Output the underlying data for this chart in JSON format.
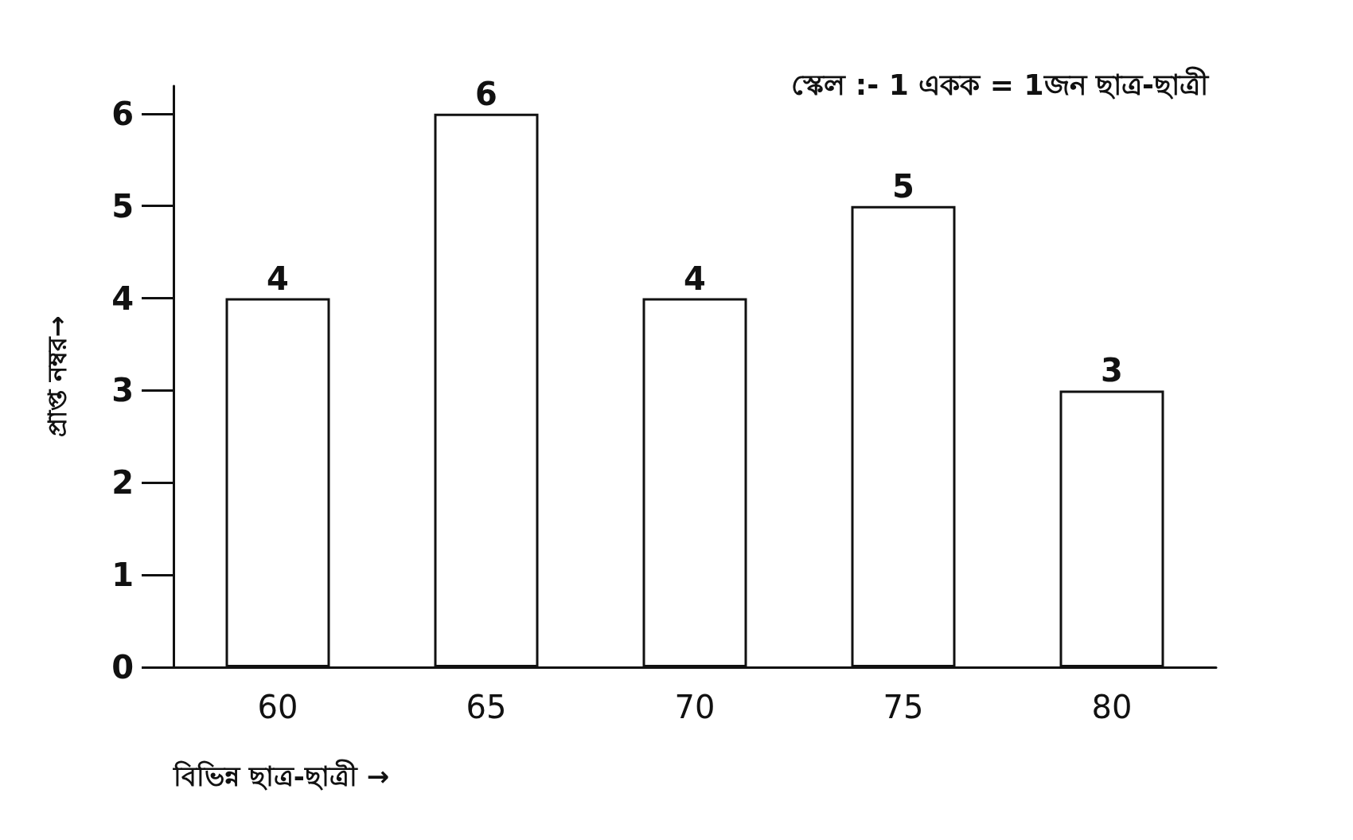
{
  "chart_data": {
    "type": "bar",
    "categories": [
      "60",
      "65",
      "70",
      "75",
      "80"
    ],
    "values": [
      4,
      6,
      4,
      5,
      3
    ],
    "color": "#ffffff",
    "ylim": [
      0,
      6.3
    ],
    "yticks": [
      0,
      1,
      2,
      3,
      4,
      5,
      6
    ],
    "xlabel": "বিভিন্ন ছাত্র-ছাত্রী →",
    "ylabel": "প্রাপ্ত নম্বর→",
    "annotations": [
      "স্কেল :- 1 একক = 1জন ছাত্র-ছাত্রী"
    ],
    "data_labels": true,
    "grid": false
  }
}
